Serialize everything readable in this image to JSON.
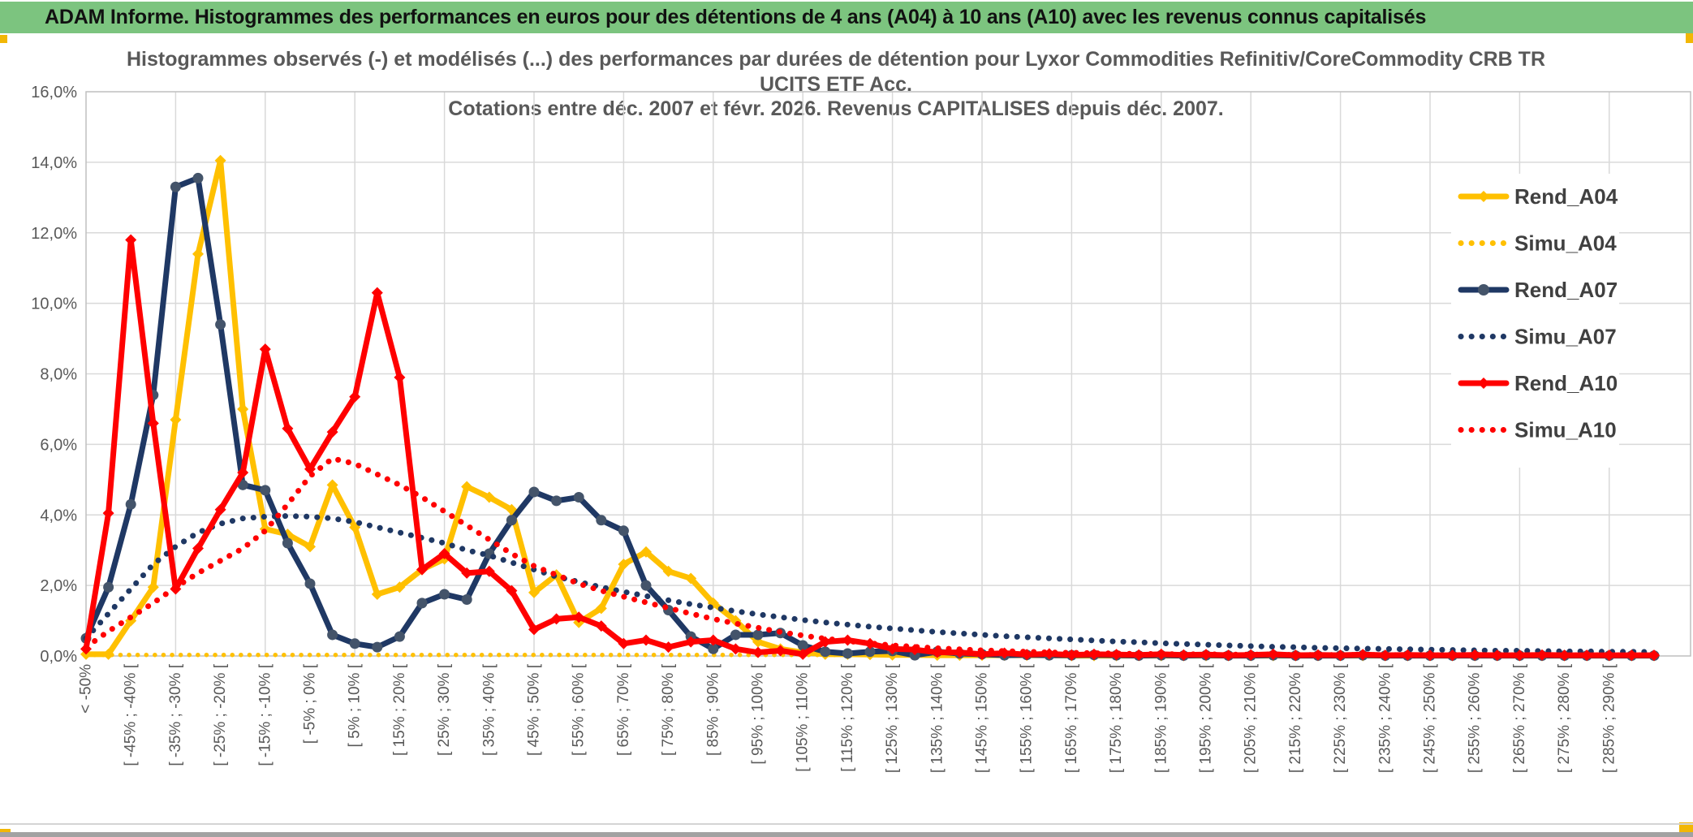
{
  "window": {
    "title": "ADAM Informe. Histogrammes des performances en euros pour des détentions de 4 ans (A04) à 10 ans (A10) avec les revenus connus capitalisés"
  },
  "chart": {
    "title_line1": "Histogrammes observés (-) et modélisés (...) des performances par durées de détention pour Lyxor Commodities Refinitiv/CoreCommodity CRB TR",
    "title_line2": "UCITS ETF Acc.",
    "title_line3": "Cotations entre déc. 2007 et févr. 2026. Revenus CAPITALISES depuis déc. 2007."
  },
  "colors": {
    "header_green": "#7CC47F",
    "accent_yellow": "#F2B705",
    "grid": "#D9D9D9",
    "axis_border": "#BFBFBF",
    "tick_text": "#595959",
    "legend_text": "#404040",
    "series_gold": "#FFC000",
    "series_navy": "#1F3864",
    "series_navy_marker": "#44546A",
    "series_red": "#FF0000"
  },
  "chart_data": {
    "type": "line",
    "title": "Histogrammes observés (-) et modélisés (...) des performances par durées de détention pour Lyxor Commodities Refinitiv/CoreCommodity CRB TR UCITS ETF Acc. Cotations entre déc. 2007 et févr. 2026. Revenus CAPITALISES depuis déc. 2007.",
    "grid": true,
    "legend_position": "right-inside",
    "ylim": [
      0,
      16
    ],
    "ytick_step": 2,
    "ytick_labels": [
      "0,0%",
      "2,0%",
      "4,0%",
      "6,0%",
      "8,0%",
      "10,0%",
      "12,0%",
      "14,0%",
      "16,0%"
    ],
    "bins": 71,
    "label_every_bins": 2,
    "categories": [
      "< -50%",
      "[ -45% ; -40% [",
      "[ -35% ; -30% [",
      "[ -25% ; -20% [",
      "[ -15% ; -10% [",
      "[ -5% ; 0% [",
      "[ 5% ; 10% [",
      "[ 15% ; 20% [",
      "[ 25% ; 30% [",
      "[ 35% ; 40% [",
      "[ 45% ; 50% [",
      "[ 55% ; 60% [",
      "[ 65% ; 70% [",
      "[ 75% ; 80% [",
      "[ 85% ; 90% [",
      "[ 95% ; 100% [",
      "[ 105% ; 110% [",
      "[ 115% ; 120% [",
      "[ 125% ; 130% [",
      "[ 135% ; 140% [",
      "[ 145% ; 150% [",
      "[ 155% ; 160% [",
      "[ 165% ; 170% [",
      "[ 175% ; 180% [",
      "[ 185% ; 190% [",
      "[ 195% ; 200% [",
      "[ 205% ; 210% [",
      "[ 215% ; 220% [",
      "[ 225% ; 230% [",
      "[ 235% ; 240% [",
      "[ 245% ; 250% [",
      "[ 255% ; 260% [",
      "[ 265% ; 270% [",
      "[ 275% ; 280% [",
      "[ 285% ; 290% ["
    ],
    "series": [
      {
        "name": "Rend_A04",
        "color": "#FFC000",
        "style": "solid",
        "marker": "diamond",
        "marker_color": "#FFC000",
        "values": [
          0.05,
          0.05,
          1.0,
          1.95,
          6.7,
          11.4,
          14.05,
          7.0,
          3.6,
          3.45,
          3.1,
          4.85,
          3.65,
          1.75,
          1.95,
          2.45,
          2.75,
          4.8,
          4.5,
          4.15,
          1.8,
          2.3,
          0.95,
          1.35,
          2.6,
          2.95,
          2.4,
          2.2,
          1.5,
          1.0,
          0.4,
          0.2,
          0.1,
          0.05,
          0.05,
          0.04,
          0.03,
          0.03,
          0.02,
          0.02,
          0.02,
          0.02,
          0.02,
          0.02,
          0.01,
          0.01,
          0.01,
          0.01,
          0.01,
          0.01,
          0.01,
          0.01,
          0.01,
          0.01,
          0.01,
          0.01,
          0.01,
          0.01,
          0.01,
          0.01,
          0.01,
          0.01,
          0.01,
          0.01,
          0.01,
          0.01,
          0.01,
          0.01,
          0.01,
          0.01,
          0.01
        ]
      },
      {
        "name": "Simu_A04",
        "color": "#FFC000",
        "style": "dotted",
        "marker": "none",
        "values": [
          0.03,
          0.03,
          0.03,
          0.03,
          0.03,
          0.03,
          0.03,
          0.03,
          0.03,
          0.03,
          0.03,
          0.03,
          0.03,
          0.03,
          0.03,
          0.03,
          0.03,
          0.03,
          0.03,
          0.03,
          0.03,
          0.03,
          0.03,
          0.03,
          0.03,
          0.03,
          0.03,
          0.03,
          0.03,
          0.03,
          0.03,
          0.03,
          0.03,
          0.03,
          0.03,
          0.03,
          0.03,
          0.03,
          0.03,
          0.03,
          0.03,
          0.03,
          0.03,
          0.03,
          0.03,
          0.03,
          0.03,
          0.03,
          0.03,
          0.03,
          0.03,
          0.03,
          0.03,
          0.03,
          0.03,
          0.03,
          0.03,
          0.03,
          0.03,
          0.03,
          0.03,
          0.03,
          0.03,
          0.03,
          0.03,
          0.03,
          0.03,
          0.03,
          0.03,
          0.03,
          0.03
        ]
      },
      {
        "name": "Rend_A07",
        "color": "#1F3864",
        "style": "solid",
        "marker": "circle",
        "marker_color": "#44546A",
        "values": [
          0.5,
          1.95,
          4.3,
          7.4,
          13.3,
          13.55,
          9.4,
          4.85,
          4.7,
          3.2,
          2.05,
          0.6,
          0.35,
          0.25,
          0.55,
          1.5,
          1.75,
          1.6,
          2.9,
          3.85,
          4.65,
          4.4,
          4.5,
          3.85,
          3.55,
          2.0,
          1.3,
          0.55,
          0.2,
          0.6,
          0.6,
          0.65,
          0.3,
          0.12,
          0.07,
          0.12,
          0.14,
          0.02,
          0.12,
          0.07,
          0.05,
          0.02,
          0.03,
          0.02,
          0.02,
          0.03,
          0.02,
          0.01,
          0.02,
          0.01,
          0.02,
          0.01,
          0.01,
          0.02,
          0.01,
          0.01,
          0.01,
          0.02,
          0.01,
          0.01,
          0.01,
          0.01,
          0.01,
          0.01,
          0.01,
          0.01,
          0.01,
          0.01,
          0.01,
          0.01,
          0.01
        ]
      },
      {
        "name": "Simu_A07",
        "color": "#1F3864",
        "style": "dotted",
        "marker": "none",
        "values": [
          0.5,
          1.2,
          1.9,
          2.6,
          3.1,
          3.5,
          3.75,
          3.9,
          3.95,
          3.97,
          3.95,
          3.9,
          3.8,
          3.65,
          3.5,
          3.35,
          3.2,
          3.0,
          2.85,
          2.65,
          2.45,
          2.25,
          2.1,
          1.95,
          1.82,
          1.7,
          1.58,
          1.47,
          1.37,
          1.27,
          1.18,
          1.1,
          1.02,
          0.95,
          0.89,
          0.83,
          0.78,
          0.73,
          0.68,
          0.64,
          0.6,
          0.56,
          0.53,
          0.5,
          0.47,
          0.44,
          0.41,
          0.39,
          0.36,
          0.34,
          0.32,
          0.3,
          0.28,
          0.26,
          0.25,
          0.23,
          0.22,
          0.21,
          0.2,
          0.19,
          0.18,
          0.17,
          0.16,
          0.15,
          0.15,
          0.14,
          0.13,
          0.13,
          0.12,
          0.12,
          0.11
        ]
      },
      {
        "name": "Rend_A10",
        "color": "#FF0000",
        "style": "solid",
        "marker": "diamond",
        "marker_color": "#FF0000",
        "values": [
          0.2,
          4.05,
          11.8,
          6.6,
          1.9,
          3.05,
          4.15,
          5.2,
          8.7,
          6.45,
          5.3,
          6.35,
          7.35,
          10.3,
          7.9,
          2.45,
          2.9,
          2.35,
          2.4,
          1.85,
          0.75,
          1.05,
          1.1,
          0.85,
          0.35,
          0.45,
          0.25,
          0.4,
          0.45,
          0.2,
          0.1,
          0.15,
          0.05,
          0.4,
          0.45,
          0.35,
          0.2,
          0.18,
          0.1,
          0.1,
          0.05,
          0.08,
          0.04,
          0.06,
          0.03,
          0.05,
          0.04,
          0.03,
          0.05,
          0.03,
          0.04,
          0.02,
          0.03,
          0.05,
          0.02,
          0.03,
          0.02,
          0.04,
          0.02,
          0.03,
          0.02,
          0.02,
          0.03,
          0.02,
          0.02,
          0.03,
          0.02,
          0.02,
          0.02,
          0.02,
          0.02
        ]
      },
      {
        "name": "Simu_A10",
        "color": "#FF0000",
        "style": "dotted",
        "marker": "none",
        "values": [
          0.25,
          0.7,
          1.1,
          1.5,
          1.95,
          2.35,
          2.7,
          3.05,
          3.55,
          4.3,
          5.1,
          5.6,
          5.45,
          5.15,
          4.85,
          4.5,
          4.1,
          3.7,
          3.3,
          2.9,
          2.55,
          2.3,
          2.05,
          1.85,
          1.68,
          1.52,
          1.36,
          1.2,
          1.05,
          0.92,
          0.8,
          0.68,
          0.58,
          0.49,
          0.42,
          0.36,
          0.3,
          0.26,
          0.22,
          0.19,
          0.16,
          0.14,
          0.12,
          0.1,
          0.09,
          0.08,
          0.07,
          0.06,
          0.055,
          0.05,
          0.05,
          0.04,
          0.04,
          0.04,
          0.03,
          0.03,
          0.03,
          0.03,
          0.03,
          0.02,
          0.02,
          0.02,
          0.02,
          0.02,
          0.02,
          0.02,
          0.02,
          0.02,
          0.02,
          0.02,
          0.02
        ]
      }
    ]
  }
}
